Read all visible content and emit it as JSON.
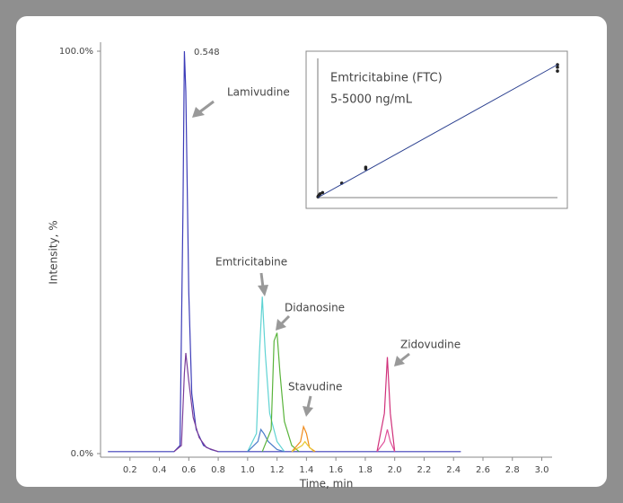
{
  "chart_data": [
    {
      "type": "line",
      "xlabel": "Time, min",
      "ylabel": "Intensity, %",
      "xlim": [
        0,
        3.07
      ],
      "ylim": [
        0,
        100
      ],
      "xticks": [
        0.2,
        0.4,
        0.6,
        0.8,
        {
          "value": 1,
          "label": "1.0"
        },
        1.2,
        1.4,
        1.6,
        1.8,
        {
          "value": 2,
          "label": "2.0"
        },
        2.2,
        2.4,
        2.6,
        2.8,
        {
          "value": 3,
          "label": "3.0"
        }
      ],
      "yticks": [
        {
          "value": 0,
          "label": "0.0%"
        },
        {
          "value": 100,
          "label": "100.0%"
        }
      ],
      "annotations": [
        "0.548",
        "Lamivudine",
        "Emtricitabine",
        "Didanosine",
        "Stavudine",
        "Zidovudine"
      ],
      "series": [
        {
          "color": "#3c3cb8",
          "x": [
            0.05,
            0.5,
            0.54,
            0.56,
            0.57,
            0.58,
            0.6,
            0.62,
            0.65,
            0.7,
            0.75,
            0.8,
            2.45
          ],
          "values": [
            0.5,
            0.5,
            2,
            60,
            100,
            90,
            40,
            15,
            6,
            2,
            1,
            0.5,
            0.5
          ]
        },
        {
          "color": "#7a3d9a",
          "x": [
            0.5,
            0.55,
            0.57,
            0.58,
            0.6,
            0.63,
            0.67,
            0.72,
            0.8
          ],
          "values": [
            0.5,
            2,
            20,
            25,
            18,
            9,
            4,
            1.5,
            0.5
          ]
        },
        {
          "color": "#5fd3d3",
          "x": [
            1.0,
            1.06,
            1.08,
            1.1,
            1.12,
            1.15,
            1.2,
            1.25
          ],
          "values": [
            0.5,
            5,
            25,
            39,
            25,
            10,
            3,
            0.5
          ]
        },
        {
          "color": "#4a7cc8",
          "x": [
            1.0,
            1.07,
            1.09,
            1.11,
            1.14,
            1.2,
            1.25
          ],
          "values": [
            0.5,
            3,
            6,
            5,
            3,
            1,
            0.5
          ]
        },
        {
          "color": "#5ab43c",
          "x": [
            1.1,
            1.16,
            1.18,
            1.2,
            1.22,
            1.25,
            1.3,
            1.35
          ],
          "values": [
            0.5,
            6,
            28,
            30,
            20,
            8,
            2,
            0.5
          ]
        },
        {
          "color": "#f08c1e",
          "x": [
            1.3,
            1.36,
            1.38,
            1.4,
            1.42,
            1.46
          ],
          "values": [
            0.5,
            3,
            6.7,
            5,
            1.5,
            0.5
          ]
        },
        {
          "color": "#e8c832",
          "x": [
            1.3,
            1.37,
            1.39,
            1.41,
            1.45
          ],
          "values": [
            0.5,
            2,
            3,
            2,
            0.5
          ]
        },
        {
          "color": "#d0307a",
          "x": [
            1.88,
            1.93,
            1.95,
            1.97,
            2.0
          ],
          "values": [
            0.5,
            10,
            24,
            10,
            0.5
          ]
        },
        {
          "color": "#e0509a",
          "x": [
            1.88,
            1.93,
            1.95,
            1.97,
            2.0
          ],
          "values": [
            0.5,
            3,
            6,
            3,
            0.5
          ]
        }
      ]
    },
    {
      "type": "scatter",
      "title": "Emtricitabine  (FTC)",
      "subtitle": "5-5000 ng/mL",
      "xlim": [
        0,
        5000
      ],
      "ylim": [
        0,
        110
      ],
      "series": [
        {
          "color": "#222222",
          "x": [
            5,
            10,
            25,
            50,
            100,
            500,
            1000,
            1000,
            5000,
            5000,
            5000
          ],
          "values": [
            0.6,
            1.1,
            2,
            3,
            4,
            11.4,
            22.7,
            24,
            105,
            103,
            100
          ]
        },
        {
          "color": "#2a3f8f",
          "line": true,
          "x": [
            0,
            5000
          ],
          "values": [
            0,
            105
          ]
        }
      ]
    }
  ]
}
